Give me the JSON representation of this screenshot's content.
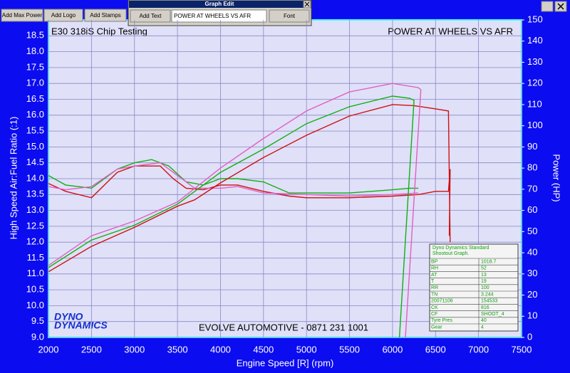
{
  "window": {
    "buttons": [
      "Add Max Power",
      "Add Logo",
      "Add Stamps"
    ],
    "dialog": {
      "title": "Graph Edit",
      "add_text": "Add Text",
      "input": "POWER AT WHEELS VS AFR",
      "font": "Font"
    }
  },
  "chart_data": {
    "type": "line",
    "title": "E30 318iS Chip Testing",
    "subtitle": "POWER AT WHEELS VS AFR",
    "footer": "EVOLVE AUTOMOTIVE - 0871 231 1001",
    "logo": [
      "DYNO",
      "DYNAMICS"
    ],
    "x_label": "Engine Speed [R] (rpm)",
    "y_label": "High Speed Air:Fuel Ratio (:1)",
    "y2_label": "Power (HP)",
    "xlim": [
      2000,
      7500
    ],
    "xticks": [
      2000,
      2500,
      3000,
      3500,
      4000,
      4500,
      5000,
      5500,
      6000,
      6500,
      7000,
      7500
    ],
    "ylim": [
      9,
      19
    ],
    "yticks": [
      {
        "value": 9,
        "label": "9.0"
      },
      9.5,
      {
        "value": 10,
        "label": "10.0"
      },
      10.5,
      {
        "value": 11,
        "label": "11.0"
      },
      11.5,
      {
        "value": 12,
        "label": "12.0"
      },
      12.5,
      {
        "value": 13,
        "label": "13.0"
      },
      13.5,
      {
        "value": 14,
        "label": "14.0"
      },
      14.5,
      {
        "value": 15,
        "label": "15.0"
      },
      15.5,
      {
        "value": 16,
        "label": "16.0"
      },
      16.5,
      {
        "value": 17,
        "label": "17.0"
      },
      17.5,
      {
        "value": 18,
        "label": "18.0"
      },
      18.5
    ],
    "y2lim": [
      0,
      150
    ],
    "y2ticks": [
      0,
      10,
      20,
      30,
      40,
      50,
      60,
      70,
      80,
      90,
      100,
      110,
      120,
      130,
      140,
      150
    ],
    "grid": true,
    "series": [
      {
        "color": "#d01010",
        "axis": "y",
        "x": [
          2000,
          2200,
          2500,
          2800,
          3000,
          3300,
          3450,
          3600,
          3800,
          4000,
          4200,
          4500,
          4800,
          5000,
          5500,
          6000,
          6300,
          6500,
          6650,
          6670,
          6660
        ],
        "values": [
          13.85,
          13.6,
          13.4,
          14.2,
          14.4,
          14.4,
          14.0,
          13.7,
          13.65,
          13.8,
          13.8,
          13.6,
          13.45,
          13.4,
          13.4,
          13.45,
          13.5,
          13.6,
          13.6,
          14.3,
          12.2
        ]
      },
      {
        "color": "#10b010",
        "axis": "y",
        "x": [
          2000,
          2200,
          2500,
          2800,
          3000,
          3200,
          3400,
          3600,
          3800,
          4000,
          4200,
          4500,
          4800,
          5000,
          5500,
          6000,
          6200,
          6300
        ],
        "values": [
          14.1,
          13.8,
          13.7,
          14.3,
          14.5,
          14.6,
          14.4,
          13.9,
          13.8,
          14.0,
          14.0,
          13.9,
          13.55,
          13.55,
          13.55,
          13.65,
          13.7,
          13.7
        ]
      },
      {
        "color": "#e060c0",
        "axis": "y",
        "x": [
          2000,
          2200,
          2500,
          2800,
          3000,
          3300,
          3500,
          3700,
          4000,
          4200,
          4500,
          5000,
          5500,
          6000,
          6300
        ],
        "values": [
          13.75,
          13.65,
          13.75,
          14.3,
          14.4,
          14.5,
          14.1,
          13.7,
          13.7,
          13.75,
          13.55,
          13.5,
          13.45,
          13.5,
          13.55
        ]
      },
      {
        "color": "#d01010",
        "axis": "y2",
        "x": [
          2000,
          2500,
          3000,
          3500,
          3700,
          4000,
          4500,
          5000,
          5500,
          6000,
          6250,
          6500,
          6650,
          6670
        ],
        "values": [
          31,
          43,
          52,
          62,
          65,
          73,
          85,
          95.5,
          104.6,
          110,
          109.5,
          108,
          107,
          45
        ]
      },
      {
        "color": "#10b010",
        "axis": "y2",
        "x": [
          2000,
          2500,
          3000,
          3500,
          4000,
          4500,
          5000,
          5500,
          6000,
          6200,
          6250,
          6080
        ],
        "values": [
          33,
          46,
          53,
          63,
          78,
          89,
          101,
          109,
          114,
          113,
          112,
          0
        ]
      },
      {
        "color": "#e060c0",
        "axis": "y2",
        "x": [
          2000,
          2500,
          3000,
          3500,
          4000,
          4500,
          5000,
          5500,
          6000,
          6300,
          6330,
          6150
        ],
        "values": [
          34,
          48,
          55,
          64,
          80,
          94,
          107,
          116,
          120,
          118,
          117,
          0
        ]
      }
    ]
  },
  "stamp": {
    "title": [
      "Dyno Dynamics Standard",
      "Shootout Graph."
    ],
    "rows": [
      [
        "BP",
        "1018.7"
      ],
      [
        "RH",
        "52"
      ],
      [
        "AT",
        "13"
      ],
      [
        "T",
        "19"
      ],
      [
        "RR",
        "100"
      ],
      [
        "TN",
        "3.244"
      ],
      [
        "20071106",
        "154533"
      ],
      [
        "CK",
        "816"
      ],
      [
        "CF",
        "SHOOT_4"
      ],
      [
        "Tyre Pres",
        "40"
      ],
      [
        "Gear",
        "4"
      ]
    ]
  }
}
